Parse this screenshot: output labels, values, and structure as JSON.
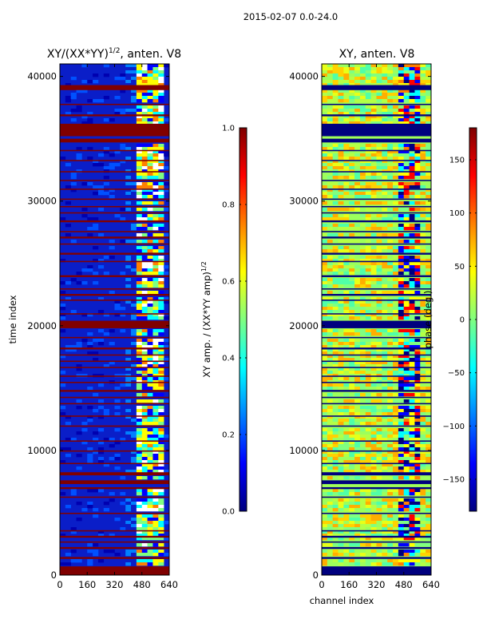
{
  "suptitle": "2015-02-07 0.0-24.0",
  "colormap": [
    "#00007f",
    "#0000ff",
    "#0080ff",
    "#00ffff",
    "#80ff80",
    "#ffff00",
    "#ff8000",
    "#ff0000",
    "#7f0000"
  ],
  "flag_color": "#800000",
  "chart_data": [
    {
      "type": "heatmap",
      "title": "XY/(XX*YY)^(1/2), anten. V8",
      "title_main": "XY/(XX*YY)",
      "title_exp": "1/2",
      "title_tail": ", anten. V8",
      "xlabel": "",
      "ylabel": "time index",
      "xlim": [
        0,
        640
      ],
      "ylim": [
        0,
        41000
      ],
      "xticks": [
        "0",
        "160",
        "320",
        "480",
        "640"
      ],
      "yticks": [
        "0",
        "10000",
        "20000",
        "30000",
        "40000"
      ],
      "colorbar": {
        "label": "XY amp. / (XX*YY amp)^(1/2)",
        "label_main": "XY amp. / (XX*YY amp)",
        "label_exp": "1/2",
        "range": [
          0.0,
          1.0
        ],
        "ticks": [
          "0.0",
          "0.2",
          "0.4",
          "0.6",
          "0.8",
          "1.0"
        ]
      }
    },
    {
      "type": "heatmap",
      "title": "XY, anten. V8",
      "xlabel": "channel index",
      "ylabel": "",
      "xlim": [
        0,
        640
      ],
      "ylim": [
        0,
        41000
      ],
      "xticks": [
        "0",
        "160",
        "320",
        "480",
        "640"
      ],
      "yticks": [
        "0",
        "10000",
        "20000",
        "30000",
        "40000"
      ],
      "colorbar": {
        "label": "phase (deg.)",
        "range": [
          -180,
          180
        ],
        "ticks": [
          "−150",
          "−100",
          "−50",
          "0",
          "50",
          "100",
          "150"
        ],
        "tick_values": [
          -150,
          -100,
          -50,
          0,
          50,
          100,
          150
        ]
      }
    }
  ],
  "flagged_time_ranges": [
    [
      0,
      700
    ],
    [
      1300,
      1450
    ],
    [
      2100,
      2250
    ],
    [
      2600,
      2700
    ],
    [
      3000,
      3150
    ],
    [
      3500,
      3600
    ],
    [
      4900,
      5000
    ],
    [
      6200,
      6300
    ],
    [
      6900,
      7050
    ],
    [
      7300,
      7600
    ],
    [
      8000,
      8250
    ],
    [
      8900,
      9000
    ],
    [
      9900,
      10000
    ],
    [
      10700,
      10800
    ],
    [
      11900,
      12000
    ],
    [
      12700,
      12800
    ],
    [
      13700,
      13800
    ],
    [
      14200,
      14300
    ],
    [
      14700,
      14850
    ],
    [
      15400,
      15500
    ],
    [
      15900,
      16000
    ],
    [
      16600,
      16700
    ],
    [
      17100,
      17200
    ],
    [
      17600,
      17700
    ],
    [
      18100,
      18250
    ],
    [
      19000,
      19100
    ],
    [
      19800,
      20400
    ],
    [
      20900,
      21000
    ],
    [
      22000,
      22100
    ],
    [
      22400,
      22550
    ],
    [
      22900,
      23000
    ],
    [
      23900,
      24050
    ],
    [
      25100,
      25200
    ],
    [
      25700,
      25850
    ],
    [
      26500,
      26600
    ],
    [
      27000,
      27150
    ],
    [
      27500,
      27600
    ],
    [
      28300,
      28450
    ],
    [
      29000,
      29100
    ],
    [
      29500,
      29600
    ],
    [
      30100,
      30200
    ],
    [
      30900,
      31000
    ],
    [
      31600,
      31700
    ],
    [
      32300,
      32400
    ],
    [
      33200,
      33300
    ],
    [
      34000,
      34100
    ],
    [
      34700,
      35000
    ],
    [
      35200,
      36200
    ],
    [
      36800,
      36950
    ],
    [
      37700,
      37800
    ],
    [
      38900,
      39300
    ]
  ]
}
